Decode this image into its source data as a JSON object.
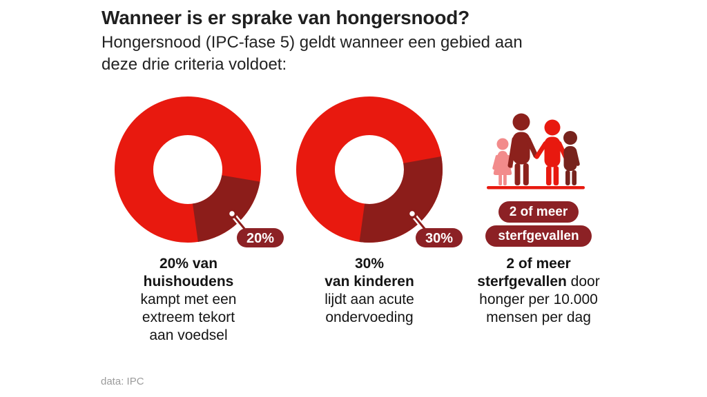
{
  "header": {
    "title": "Wanneer is er sprake van hongersnood?",
    "subtitle": "Hongersnood (IPC-fase 5) geldt wanneer een gebied aan\ndeze drie criteria voldoet:"
  },
  "colors": {
    "bright_red": "#e8190f",
    "dark_red_segment": "#8c1d1a",
    "badge_red": "#8c2125",
    "pink_figure": "#f28b8b",
    "brown_figure": "#77231d",
    "text_dark": "#1f1f1f",
    "source_gray": "#9b9b9b"
  },
  "chart_data": [
    {
      "type": "pie",
      "subtype": "donut",
      "title": "20% van huishoudens kampt met een extreem tekort aan voedsel",
      "slices": [
        {
          "label": "20%",
          "value": 20,
          "color": "#8c1d1a"
        },
        {
          "label": "",
          "value": 80,
          "color": "#e8190f"
        }
      ],
      "callout_label": "20%",
      "segment_start_angle_deg": 100
    },
    {
      "type": "pie",
      "subtype": "donut",
      "title": "30% van kinderen lijdt aan acute ondervoeding",
      "slices": [
        {
          "label": "30%",
          "value": 30,
          "color": "#8c1d1a"
        },
        {
          "label": "",
          "value": 70,
          "color": "#e8190f"
        }
      ],
      "callout_label": "30%",
      "segment_start_angle_deg": 80
    },
    {
      "type": "pictogram",
      "title": "2 of meer sterfgevallen door honger per 10.000 mensen per dag",
      "icon": "family-figures-icon",
      "badges": [
        "2 of meer",
        "sterfgevallen"
      ]
    }
  ],
  "captions": [
    {
      "bold": "20% van\nhuishoudens",
      "rest": "\nkampt met een\nextreem tekort\naan voedsel"
    },
    {
      "bold": "30%\nvan kinderen",
      "rest": "\nlijdt aan acute\nondervoeding"
    },
    {
      "bold": "2 of meer\nsterfgevallen",
      "rest": " door\nhonger per 10.000\nmensen per dag"
    }
  ],
  "footer": {
    "source": "data: IPC"
  }
}
